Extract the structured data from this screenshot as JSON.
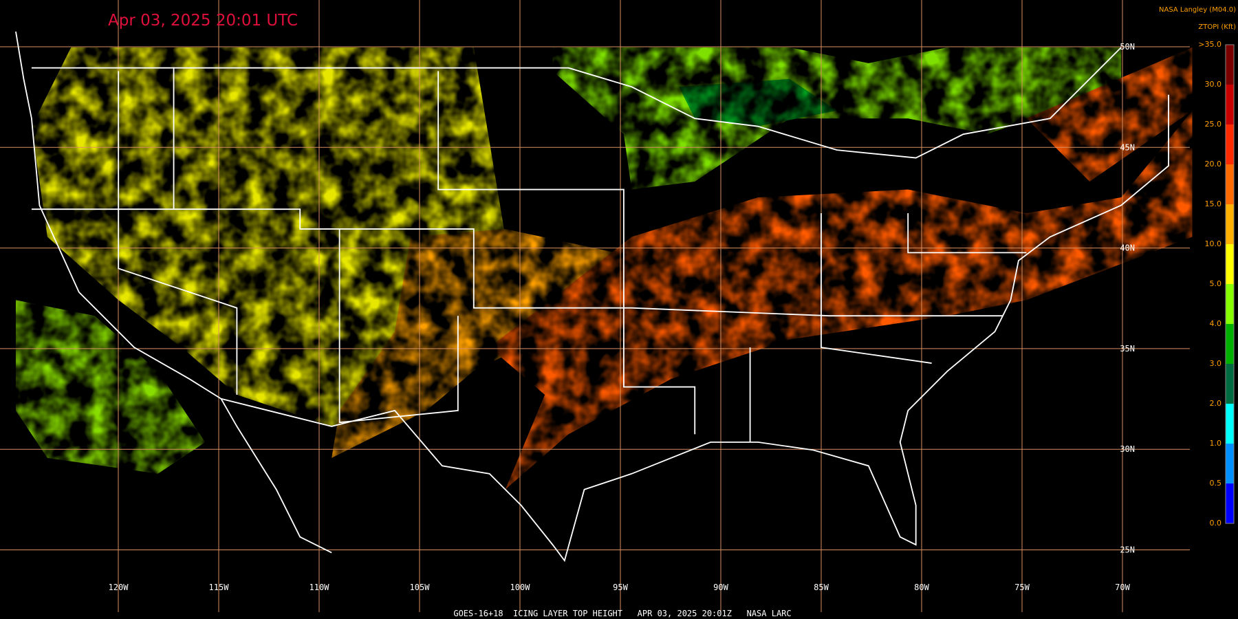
{
  "header": {
    "title": "Apr 03, 2025 20:01 UTC",
    "source": "NASA Langley (M04.0)",
    "units": "ZTOPI (Kft)"
  },
  "colorbar": {
    "labels": [
      ">35.0",
      "30.0",
      "25.0",
      "20.0",
      "15.0",
      "10.0",
      "5.0",
      "4.0",
      "3.0",
      "2.0",
      "1.0",
      "0.5",
      "0.0"
    ],
    "colors": [
      "#7a0000",
      "#c80000",
      "#ff2a00",
      "#ff6a00",
      "#ffb000",
      "#ffff00",
      "#88ff00",
      "#00b000",
      "#006a40",
      "#00ffff",
      "#0090ff",
      "#0000ff",
      "#9a40ff"
    ]
  },
  "longitudes": [
    "120W",
    "115W",
    "110W",
    "105W",
    "100W",
    "95W",
    "90W",
    "85W",
    "80W",
    "75W",
    "70W"
  ],
  "latitudes": [
    "50N",
    "45N",
    "40N",
    "35N",
    "30N",
    "25N"
  ],
  "footer": "GOES-16+18  ICING LAYER TOP HEIGHT   APR 03, 2025 20:01Z   NASA LARC"
}
